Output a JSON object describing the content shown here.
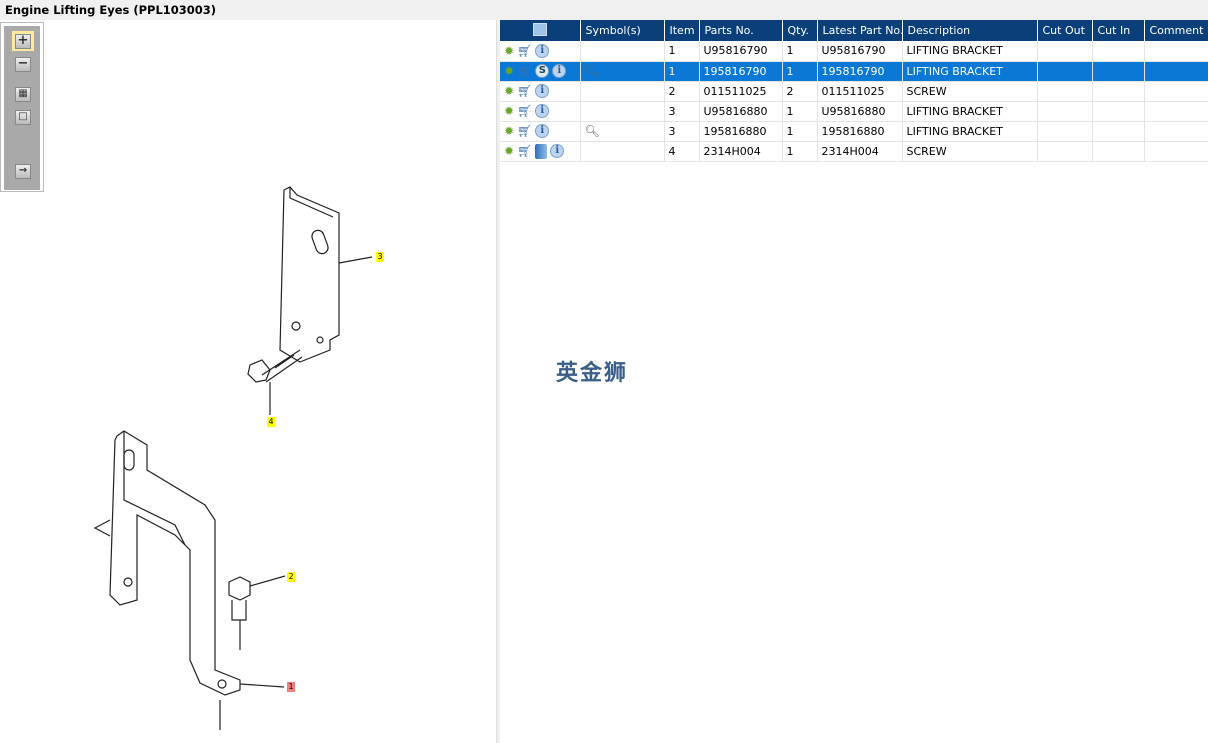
{
  "title": "Engine Lifting Eyes (PPL103003)",
  "toolbar": {
    "zoom_in": "+",
    "zoom_out": "−",
    "fit": "▦",
    "single": "□",
    "export": "→"
  },
  "callouts": [
    {
      "label": "3",
      "color": "#ffff00"
    },
    {
      "label": "4",
      "color": "#ffff00"
    },
    {
      "label": "2",
      "color": "#ffff00"
    },
    {
      "label": "1",
      "color": "#f08080"
    }
  ],
  "table": {
    "headers": [
      "Symbol(s)",
      "Item",
      "Parts No.",
      "Qty.",
      "Latest Part No.",
      "Description",
      "Cut Out",
      "Cut In",
      "Comment"
    ],
    "rows": [
      {
        "icons": [
          "gear",
          "cart",
          "info"
        ],
        "symbol": "",
        "item": "1",
        "part": "U95816790",
        "qty": "1",
        "latest": "U95816790",
        "desc": "LIFTING BRACKET",
        "cut_out": "",
        "cut_in": "",
        "comment": ""
      },
      {
        "icons": [
          "gear",
          "cart",
          "s",
          "info"
        ],
        "symbol": "view",
        "item": "1",
        "part": "195816790",
        "qty": "1",
        "latest": "195816790",
        "desc": "LIFTING BRACKET",
        "cut_out": "",
        "cut_in": "",
        "comment": "",
        "selected": true
      },
      {
        "icons": [
          "gear",
          "cart",
          "info"
        ],
        "symbol": "",
        "item": "2",
        "part": "011511025",
        "qty": "2",
        "latest": "011511025",
        "desc": "SCREW",
        "cut_out": "",
        "cut_in": "",
        "comment": ""
      },
      {
        "icons": [
          "gear",
          "cart",
          "info"
        ],
        "symbol": "",
        "item": "3",
        "part": "U95816880",
        "qty": "1",
        "latest": "U95816880",
        "desc": "LIFTING BRACKET",
        "cut_out": "",
        "cut_in": "",
        "comment": ""
      },
      {
        "icons": [
          "gear",
          "cart",
          "info"
        ],
        "symbol": "view",
        "item": "3",
        "part": "195816880",
        "qty": "1",
        "latest": "195816880",
        "desc": "LIFTING BRACKET",
        "cut_out": "",
        "cut_in": "",
        "comment": ""
      },
      {
        "icons": [
          "gear",
          "cart",
          "book",
          "info"
        ],
        "symbol": "",
        "item": "4",
        "part": "2314H004",
        "qty": "1",
        "latest": "2314H004",
        "desc": "SCREW",
        "cut_out": "",
        "cut_in": "",
        "comment": ""
      }
    ]
  },
  "watermark": "英金狮",
  "colors": {
    "header": "#0a3f7a",
    "selected": "#0a78d4"
  }
}
